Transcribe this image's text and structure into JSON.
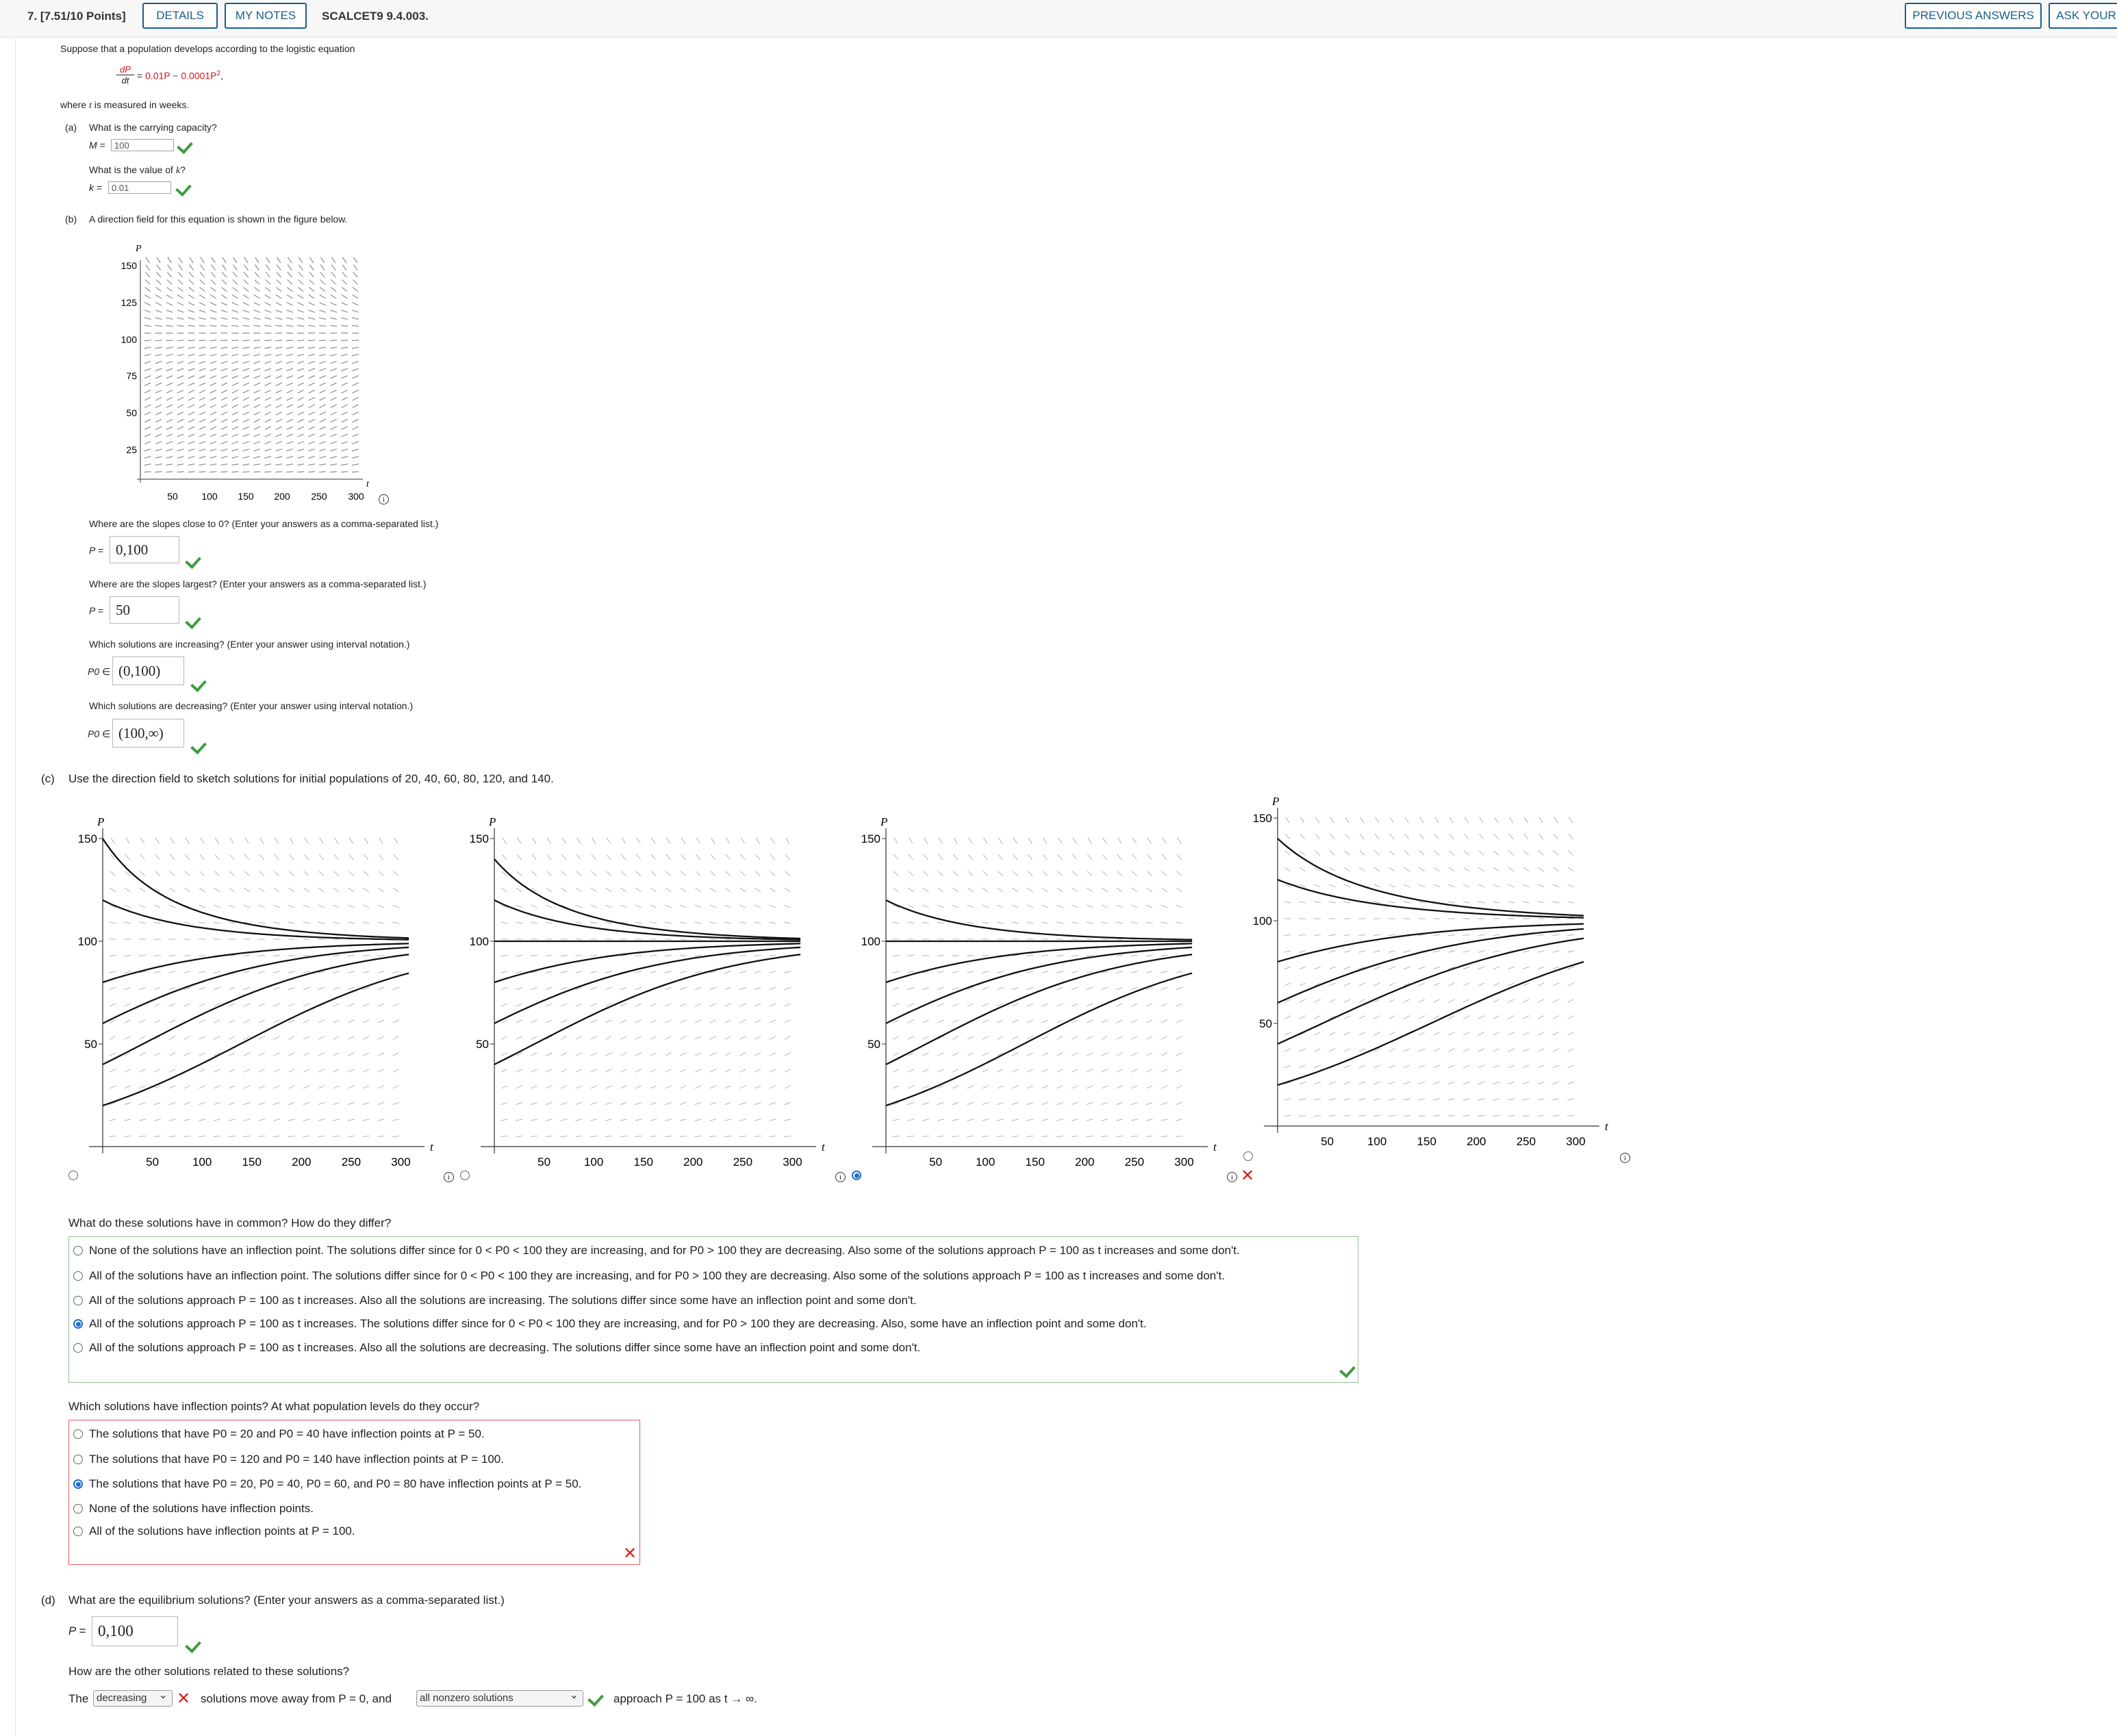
{
  "header": {
    "question": "7. [7.51/10 Points]",
    "details": "DETAILS",
    "my_notes": "MY NOTES",
    "code": "SCALCET9 9.4.003.",
    "prev_answers": "PREVIOUS ANSWERS",
    "ask": "ASK YOUR"
  },
  "intro": {
    "line1": "Suppose that a population develops according to the logistic equation",
    "frac_num": "dP",
    "frac_den": "dt",
    "eq_rhs": "0.01P − 0.0001P",
    "eq_exp": "2",
    "eq_tail": ",",
    "line2_pre": "where ",
    "line2_var": "t",
    "line2_post": " is measured in weeks."
  },
  "part_a": {
    "label": "(a)",
    "q1": "What is the carrying capacity?",
    "m_label": "M =",
    "m_value": "100",
    "q2": "What is the value of ",
    "q2_var": "k",
    "q2_tail": "?",
    "k_label": "k =",
    "k_value": "0.01"
  },
  "part_b": {
    "label": "(b)",
    "text": "A direction field for this equation is shown in the figure below.",
    "q1": "Where are the slopes close to 0? (Enter your answers as a comma-separated list.)",
    "a1_label": "P =",
    "a1": "0,100",
    "q2": "Where are the slopes largest? (Enter your answers as a comma-separated list.)",
    "a2_label": "P =",
    "a2": "50",
    "q3": "Which solutions are increasing? (Enter your answer using interval notation.)",
    "a3_label": "P0 ∈",
    "a3": "(0,100)",
    "q4": "Which solutions are decreasing? (Enter your answer using interval notation.)",
    "a4_label": "P0 ∈",
    "a4": "(100,∞)"
  },
  "part_c": {
    "label": "(c)",
    "text": "Use the direction field to sketch solutions for initial populations of 20, 40, 60, 80, 120, and 140.",
    "q1": "What do these solutions have in common? How do they differ?",
    "options1": [
      "None of the solutions have an inflection point. The solutions differ since for 0 < P0 < 100 they are increasing, and for P0 > 100 they are decreasing. Also some of the solutions approach P = 100 as t increases and some don't.",
      "All of the solutions have an inflection point. The solutions differ since for 0 < P0 < 100 they are increasing, and for P0 > 100 they are decreasing. Also some of the solutions approach P = 100 as t increases and some don't.",
      "All of the solutions approach P = 100 as t increases. Also all the solutions are increasing. The solutions differ since some have an inflection point and some don't.",
      "All of the solutions approach P = 100 as t increases. The solutions differ since for 0 < P0 < 100 they are increasing, and for P0 > 100 they are decreasing. Also, some have an inflection point and some don't.",
      "All of the solutions approach P = 100 as t increases. Also all the solutions are decreasing. The solutions differ since some have an inflection point and some don't."
    ],
    "q2": "Which solutions have inflection points? At what population levels do they occur?",
    "options2": [
      "The solutions that have P0 = 20 and P0 = 40 have inflection points at P = 50.",
      "The solutions that have P0 = 120 and P0 = 140 have inflection points at P = 100.",
      "The solutions that have P0 = 20, P0 = 40, P0 = 60, and P0 = 80 have inflection points at P = 50.",
      "None of the solutions have inflection points.",
      "All of the solutions have inflection points at P = 100."
    ]
  },
  "part_d": {
    "label": "(d)",
    "q1": "What are the equilibrium solutions? (Enter your answers as a comma-separated list.)",
    "a1_label": "P =",
    "a1": "0,100",
    "q2": "How are the other solutions related to these solutions?",
    "pre": "The",
    "sel1": "decreasing",
    "mid": "solutions move away from P = 0, and",
    "sel2": "all nonzero solutions",
    "post": "approach P = 100 as t → ∞."
  },
  "axes": {
    "p": "P",
    "t": "t",
    "small_y": [
      "150",
      "125",
      "100",
      "75",
      "50",
      "25"
    ],
    "small_x": [
      "50",
      "100",
      "150",
      "200",
      "250",
      "300"
    ],
    "big_y": [
      "150",
      "100",
      "50"
    ],
    "big_x": [
      "50",
      "100",
      "150",
      "200",
      "250",
      "300"
    ]
  },
  "icons": {
    "info": "info-icon",
    "check": "check-icon",
    "cross": "cross-icon"
  },
  "colors": {
    "brand": "#1b5e8a",
    "correct": "#3e9c3e",
    "wrong": "#d82020",
    "radio_selected": "#1a6fd0",
    "equation": "#d0121b"
  }
}
